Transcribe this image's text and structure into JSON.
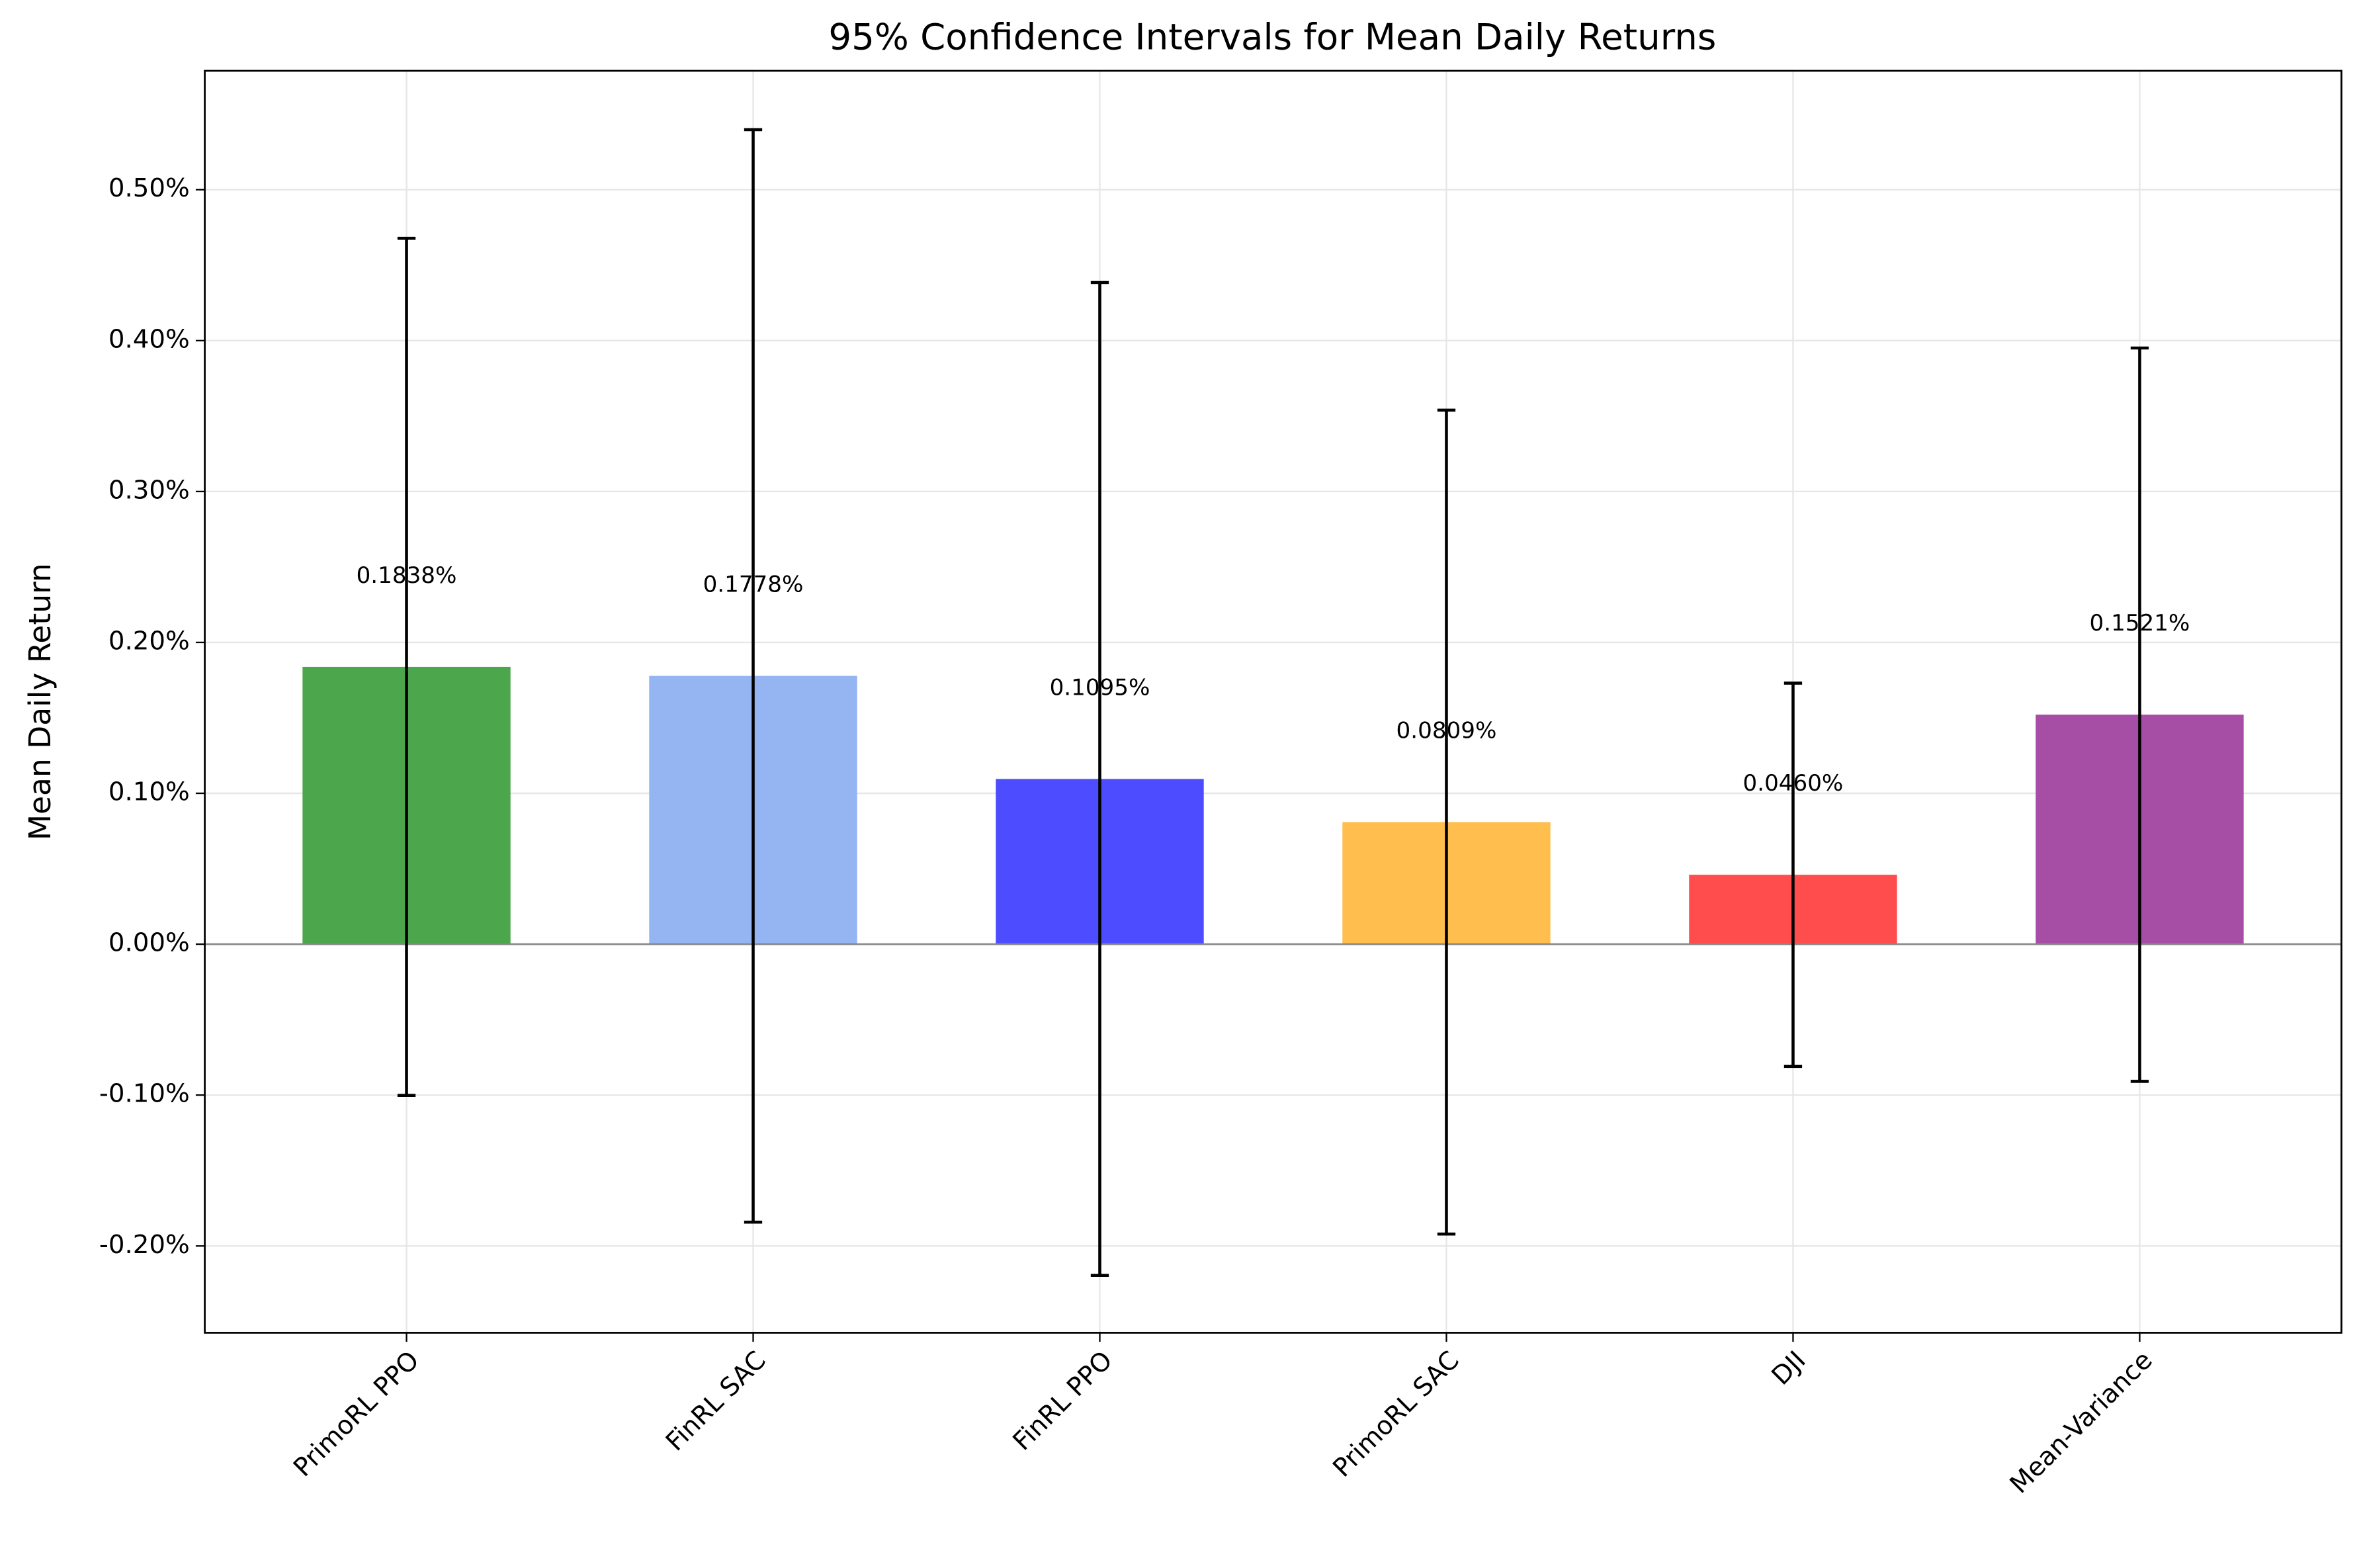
{
  "chart_data": {
    "type": "bar",
    "title": "95% Confidence Intervals for Mean Daily Returns",
    "y_label": "Mean Daily Return",
    "categories": [
      "PrimoRL PPO",
      "FinRL SAC",
      "FinRL PPO",
      "PrimoRL SAC",
      "DJI",
      "Mean-Variance"
    ],
    "values": [
      0.1838,
      0.1778,
      0.1095,
      0.0809,
      0.046,
      0.1521
    ],
    "value_labels": [
      "0.1838%",
      "0.1778%",
      "0.1095%",
      "0.0809%",
      "0.0460%",
      "0.1521%"
    ],
    "errors": [
      0.284,
      0.362,
      0.329,
      0.273,
      0.127,
      0.243
    ],
    "colors": [
      "#4ca64c",
      "#95b4f2",
      "#4d4dff",
      "#ffbe4d",
      "#ff4d4d",
      "#a64da6"
    ],
    "ylim": [
      -0.2575,
      0.5788
    ],
    "yticks": [
      {
        "value": -0.2,
        "label": "-0.20%"
      },
      {
        "value": -0.1,
        "label": "-0.10%"
      },
      {
        "value": 0,
        "label": "0.00%"
      },
      {
        "value": 0.1,
        "label": "0.10%"
      },
      {
        "value": 0.2,
        "label": "0.20%"
      },
      {
        "value": 0.3,
        "label": "0.30%"
      },
      {
        "value": 0.4,
        "label": "0.40%"
      },
      {
        "value": 0.5,
        "label": "0.50%"
      }
    ],
    "grid": true
  }
}
